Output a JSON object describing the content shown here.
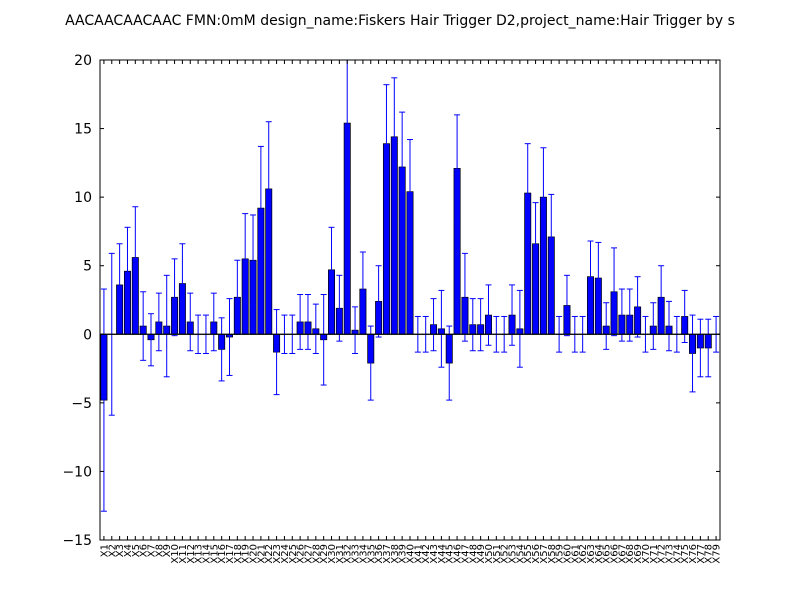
{
  "chart_data": {
    "type": "bar",
    "title": "AACAACAACAAC  FMN:0mM  design_name:Fiskers Hair Trigger D2,project_name:Hair Trigger by s",
    "xlabel": "",
    "ylabel": "",
    "ylim": [
      -15,
      20
    ],
    "yticks": [
      -15,
      -10,
      -5,
      0,
      5,
      10,
      15,
      20
    ],
    "ytick_labels": [
      "−15",
      "−10",
      "−5",
      "0",
      "5",
      "10",
      "15",
      "20"
    ],
    "grid": false,
    "bar_color": "#0000ff",
    "error_color": "#0000ff",
    "categories": [
      "X1",
      "X2",
      "X3",
      "X4",
      "X5",
      "X6",
      "X7",
      "X8",
      "X9",
      "X10",
      "X11",
      "X12",
      "X13",
      "X14",
      "X15",
      "X16",
      "X17",
      "X18",
      "X19",
      "X20",
      "X21",
      "X22",
      "X23",
      "X24",
      "X25",
      "X26",
      "X27",
      "X28",
      "X29",
      "X30",
      "X31",
      "X32",
      "X33",
      "X34",
      "X35",
      "X36",
      "X37",
      "X38",
      "X39",
      "X40",
      "X41",
      "X42",
      "X43",
      "X44",
      "X45",
      "X46",
      "X47",
      "X48",
      "X49",
      "X50",
      "X51",
      "X52",
      "X53",
      "X54",
      "X55",
      "X56",
      "X57",
      "X58",
      "X59",
      "X60",
      "X61",
      "X62",
      "X63",
      "X64",
      "X65",
      "X66",
      "X67",
      "X68",
      "X69",
      "X70",
      "X71",
      "X72",
      "X73",
      "X74",
      "X75",
      "X76",
      "X77",
      "X78",
      "X79"
    ],
    "values": [
      -4.8,
      0,
      3.6,
      4.6,
      5.6,
      0.6,
      -0.4,
      0.9,
      0.6,
      2.7,
      3.7,
      0.9,
      0,
      0,
      0.9,
      -1.1,
      -0.2,
      2.7,
      5.5,
      5.4,
      9.2,
      10.6,
      -1.3,
      0,
      0,
      0.9,
      0.9,
      0.4,
      -0.4,
      4.7,
      1.9,
      15.4,
      0.3,
      3.3,
      -2.1,
      2.4,
      13.9,
      14.4,
      12.2,
      10.4,
      0,
      0,
      0.7,
      0.4,
      -2.1,
      12.1,
      2.7,
      0.7,
      0.7,
      1.4,
      0,
      0,
      1.4,
      0.4,
      10.3,
      6.6,
      10,
      7.1,
      0,
      2.1,
      0,
      0,
      4.2,
      4.1,
      0.6,
      3.1,
      1.4,
      1.4,
      2,
      0,
      0.6,
      2.7,
      0.6,
      0,
      1.3,
      -1.4,
      -1,
      -1,
      0
    ],
    "errors": [
      8.1,
      5.9,
      3,
      3.2,
      3.7,
      2.5,
      1.9,
      2.1,
      3.7,
      2.8,
      2.9,
      2.1,
      1.4,
      1.4,
      2.1,
      2.3,
      2.8,
      2.7,
      3.3,
      3.3,
      4.5,
      4.9,
      3.1,
      1.4,
      1.4,
      2,
      2,
      1.8,
      3.3,
      3.1,
      2.4,
      4.8,
      1.7,
      2.7,
      2.7,
      2.6,
      4.3,
      4.3,
      4,
      3.8,
      1.3,
      1.3,
      1.9,
      2.8,
      2.7,
      3.9,
      3.2,
      1.9,
      1.9,
      2.2,
      1.3,
      1.3,
      2.2,
      2.8,
      3.6,
      3,
      3.6,
      3.1,
      1.3,
      2.2,
      1.3,
      1.3,
      2.6,
      2.6,
      1.7,
      3.2,
      1.9,
      1.9,
      2.2,
      1.3,
      1.7,
      2.3,
      1.8,
      1.3,
      1.9,
      2.8,
      2.1,
      2.1,
      1.3
    ]
  }
}
